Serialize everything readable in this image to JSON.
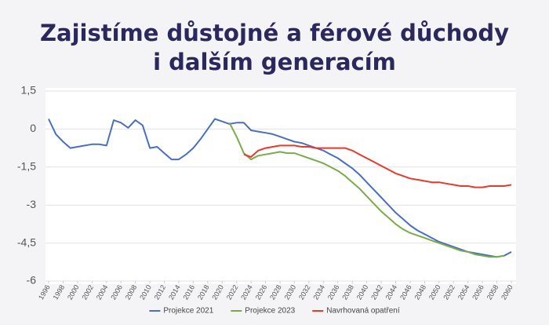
{
  "chart_data": {
    "type": "line",
    "title": [
      "Zajistíme důstojné a férové důchody",
      "i dalším generacím"
    ],
    "x": [
      1996,
      1997,
      1998,
      1999,
      2000,
      2001,
      2002,
      2003,
      2004,
      2005,
      2006,
      2007,
      2008,
      2009,
      2010,
      2011,
      2012,
      2013,
      2014,
      2015,
      2016,
      2017,
      2018,
      2019,
      2020,
      2021,
      2022,
      2023,
      2024,
      2025,
      2026,
      2027,
      2028,
      2029,
      2030,
      2031,
      2032,
      2033,
      2034,
      2035,
      2036,
      2037,
      2038,
      2039,
      2040,
      2041,
      2042,
      2043,
      2044,
      2045,
      2046,
      2047,
      2048,
      2049,
      2050,
      2051,
      2052,
      2053,
      2054,
      2055,
      2056,
      2057,
      2058,
      2059,
      2060
    ],
    "xlim": [
      1996,
      2060
    ],
    "xticks": [
      1996,
      1998,
      2000,
      2002,
      2004,
      2006,
      2008,
      2010,
      2012,
      2014,
      2016,
      2018,
      2020,
      2022,
      2024,
      2026,
      2028,
      2030,
      2032,
      2034,
      2036,
      2038,
      2040,
      2042,
      2044,
      2046,
      2048,
      2050,
      2052,
      2054,
      2056,
      2058,
      2060
    ],
    "ylim": [
      -6,
      1.5
    ],
    "yticks": [
      {
        "value": 1.5,
        "label": "1,5"
      },
      0,
      {
        "value": -1.5,
        "label": "-1,5"
      },
      -3,
      {
        "value": -4.5,
        "label": "-4,5"
      },
      -6
    ],
    "grid": true,
    "legend": "bottom",
    "series": [
      {
        "name": "Projekce 2021",
        "color": "#4a6fc0",
        "values": [
          0.4,
          -0.2,
          -0.5,
          -0.75,
          -0.7,
          -0.65,
          -0.6,
          -0.6,
          -0.65,
          0.35,
          0.25,
          0.05,
          0.35,
          0.15,
          -0.75,
          -0.7,
          -0.95,
          -1.2,
          -1.2,
          -1.0,
          -0.75,
          -0.4,
          0.0,
          0.4,
          0.3,
          0.2,
          0.25,
          0.25,
          -0.05,
          -0.1,
          -0.15,
          -0.2,
          -0.3,
          -0.4,
          -0.5,
          -0.55,
          -0.65,
          -0.75,
          -0.85,
          -1.0,
          -1.15,
          -1.35,
          -1.55,
          -1.8,
          -2.1,
          -2.4,
          -2.7,
          -3.0,
          -3.3,
          -3.55,
          -3.8,
          -4.0,
          -4.15,
          -4.3,
          -4.45,
          -4.55,
          -4.65,
          -4.75,
          -4.85,
          -4.9,
          -4.95,
          -5.0,
          -5.05,
          -5.0,
          -4.85
        ]
      },
      {
        "name": "Projekce 2023",
        "color": "#7aab4a",
        "values": [
          null,
          null,
          null,
          null,
          null,
          null,
          null,
          null,
          null,
          null,
          null,
          null,
          null,
          null,
          null,
          null,
          null,
          null,
          null,
          null,
          null,
          null,
          null,
          null,
          null,
          0.25,
          -0.3,
          -0.95,
          -1.2,
          -1.05,
          -1.0,
          -0.95,
          -0.9,
          -0.95,
          -0.95,
          -1.05,
          -1.15,
          -1.25,
          -1.35,
          -1.5,
          -1.65,
          -1.85,
          -2.1,
          -2.35,
          -2.65,
          -2.95,
          -3.25,
          -3.5,
          -3.75,
          -3.95,
          -4.1,
          -4.2,
          -4.3,
          -4.4,
          -4.5,
          -4.6,
          -4.7,
          -4.8,
          -4.85,
          -4.95,
          -5.0,
          -5.05,
          -5.05,
          -5.0,
          null
        ]
      },
      {
        "name": "Navrhovaná opatření",
        "color": "#e8392a",
        "values": [
          null,
          null,
          null,
          null,
          null,
          null,
          null,
          null,
          null,
          null,
          null,
          null,
          null,
          null,
          null,
          null,
          null,
          null,
          null,
          null,
          null,
          null,
          null,
          null,
          null,
          null,
          null,
          -1.0,
          -1.1,
          -0.85,
          -0.75,
          -0.7,
          -0.65,
          -0.65,
          -0.65,
          -0.7,
          -0.7,
          -0.75,
          -0.75,
          -0.75,
          -0.75,
          -0.75,
          -0.85,
          -1.0,
          -1.15,
          -1.3,
          -1.45,
          -1.6,
          -1.75,
          -1.85,
          -1.95,
          -2.0,
          -2.05,
          -2.1,
          -2.1,
          -2.15,
          -2.2,
          -2.25,
          -2.25,
          -2.3,
          -2.3,
          -2.25,
          -2.25,
          -2.25,
          -2.2
        ]
      }
    ]
  }
}
